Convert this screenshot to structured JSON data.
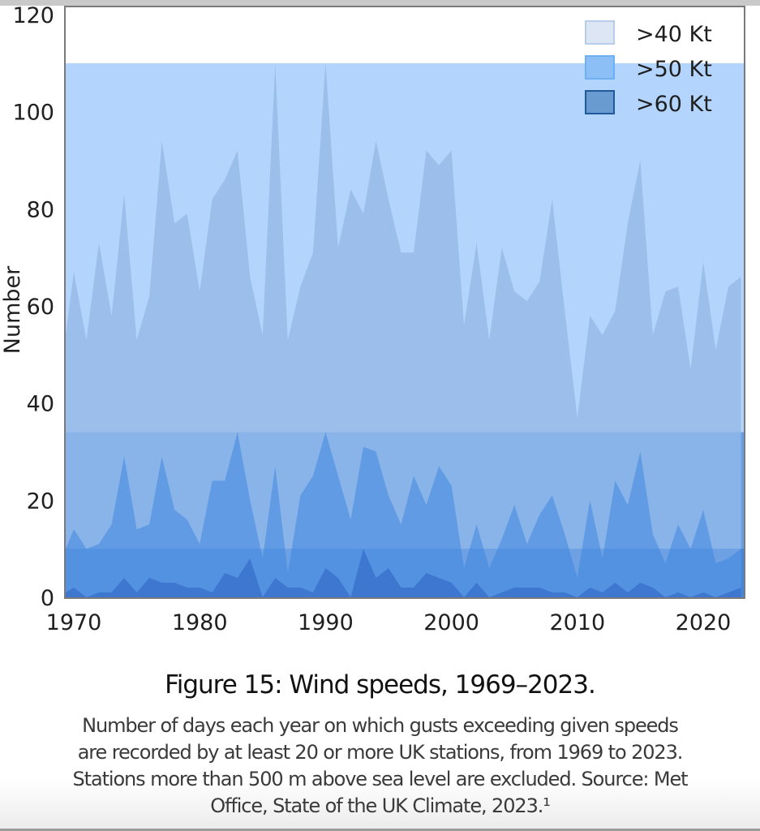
{
  "figure": {
    "title": "Figure 15: Wind speeds, 1969–2023.",
    "description_lines": [
      "Number of days each year on which gusts exceeding given speeds",
      "are recorded by at least 20 or more UK stations, from 1969 to 2023.",
      "Stations more than 500 m above sea level are excluded. Source: Met",
      "Office, State of the UK Climate, 2023.¹"
    ]
  },
  "chart_data": {
    "type": "area",
    "title": "Figure 15: Wind speeds, 1969–2023.",
    "xlabel": "",
    "ylabel": "Number",
    "xlim": [
      1969,
      2023
    ],
    "ylim": [
      0,
      120
    ],
    "xticks": [
      1970,
      1980,
      1990,
      2000,
      2010,
      2020
    ],
    "yticks": [
      0,
      20,
      40,
      60,
      80,
      100,
      120
    ],
    "grid": false,
    "legend": "top-right",
    "x": [
      1969,
      1970,
      1971,
      1972,
      1973,
      1974,
      1975,
      1976,
      1977,
      1978,
      1979,
      1980,
      1981,
      1982,
      1983,
      1984,
      1985,
      1986,
      1987,
      1988,
      1989,
      1990,
      1991,
      1992,
      1993,
      1994,
      1995,
      1996,
      1997,
      1998,
      1999,
      2000,
      2001,
      2002,
      2003,
      2004,
      2005,
      2006,
      2007,
      2008,
      2009,
      2010,
      2011,
      2012,
      2013,
      2014,
      2015,
      2016,
      2017,
      2018,
      2019,
      2020,
      2021,
      2022,
      2023
    ],
    "series": [
      {
        "name": ">40 Kt",
        "color": "#9bbfea",
        "band_color": "#b3d5fd",
        "band_level": 110,
        "values": [
          54,
          67,
          53,
          73,
          58,
          83,
          53,
          62,
          94,
          77,
          79,
          63,
          82,
          86,
          92,
          66,
          54,
          110,
          53,
          64,
          71,
          110,
          72,
          84,
          79,
          94,
          82,
          71,
          71,
          92,
          89,
          92,
          56,
          73,
          53,
          72,
          63,
          61,
          65,
          82,
          59,
          37,
          58,
          54,
          59,
          77,
          90,
          54,
          63,
          64,
          47,
          69,
          51,
          64,
          66
        ]
      },
      {
        "name": ">50 Kt",
        "color": "#5591e0",
        "band_color": "#67a0e9",
        "band_level": 34,
        "values": [
          10,
          14,
          10,
          11,
          15,
          29,
          14,
          15,
          29,
          18,
          16,
          11,
          24,
          24,
          34,
          20,
          8,
          27,
          5,
          21,
          25,
          34,
          25,
          16,
          31,
          30,
          21,
          15,
          25,
          19,
          27,
          23,
          6,
          15,
          6,
          12,
          19,
          11,
          17,
          21,
          13,
          4,
          20,
          8,
          24,
          19,
          30,
          13,
          7,
          15,
          10,
          18,
          7,
          8,
          10
        ]
      },
      {
        "name": ">60 Kt",
        "color": "#2450b3",
        "band_color": "#3a7ddd",
        "band_level": 10,
        "values": [
          1,
          2,
          0,
          1,
          1,
          4,
          1,
          4,
          3,
          3,
          2,
          2,
          1,
          5,
          4,
          8,
          0,
          4,
          2,
          2,
          1,
          6,
          4,
          0,
          10,
          4,
          6,
          2,
          2,
          5,
          4,
          3,
          0,
          3,
          0,
          1,
          2,
          2,
          2,
          1,
          1,
          0,
          2,
          1,
          3,
          1,
          3,
          2,
          0,
          1,
          0,
          1,
          0,
          1,
          2
        ]
      }
    ]
  }
}
